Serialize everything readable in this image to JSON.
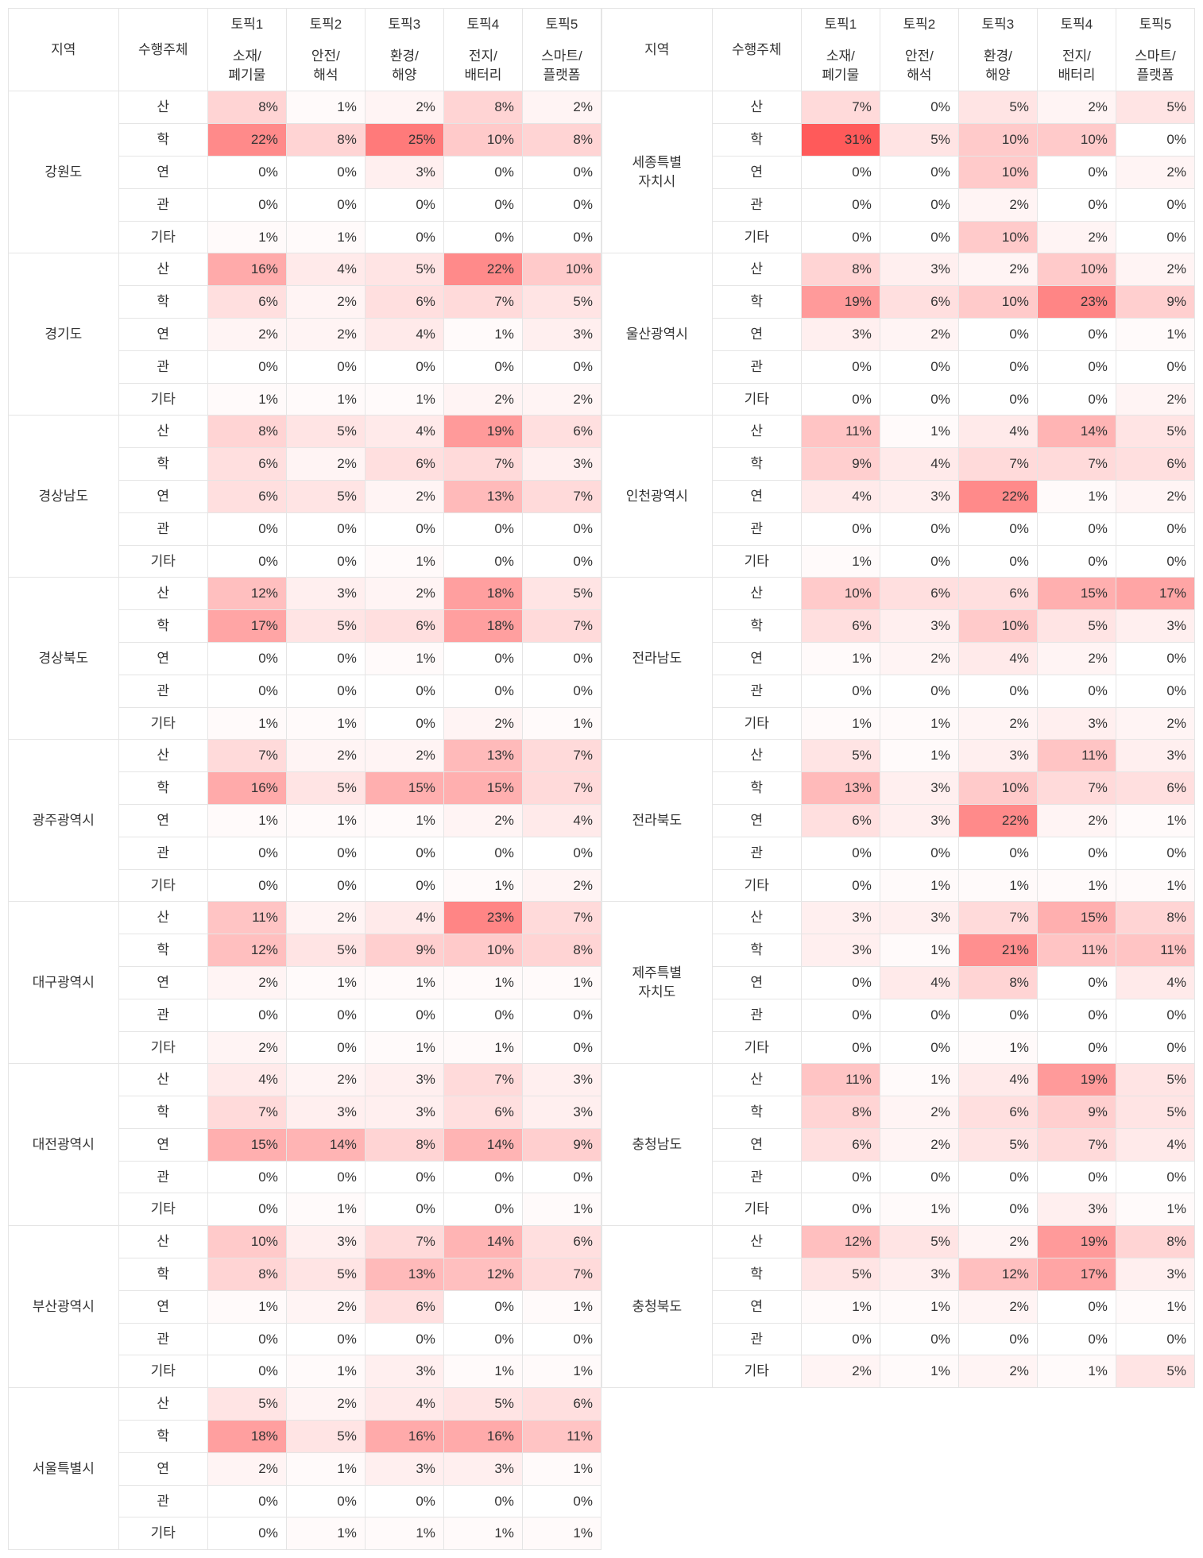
{
  "headers": {
    "region": "지역",
    "subject": "수행주체",
    "topic_labels": [
      "토픽1",
      "토픽2",
      "토픽3",
      "토픽4",
      "토픽5"
    ],
    "topic_sublabels": [
      "소재/\n폐기물",
      "안전/\n해석",
      "환경/\n해양",
      "전지/\n배터리",
      "스마트/\n플랫폼"
    ]
  },
  "heatmap": {
    "min_color": "#ffffff",
    "max_color": "#ff5a5a",
    "min_value": 0,
    "max_value": 31
  },
  "subjects": [
    "산",
    "학",
    "연",
    "관",
    "기타"
  ],
  "left_regions": [
    {
      "name": "강원도",
      "rows": [
        [
          8,
          1,
          2,
          8,
          2
        ],
        [
          22,
          8,
          25,
          10,
          8
        ],
        [
          0,
          0,
          3,
          0,
          0
        ],
        [
          0,
          0,
          0,
          0,
          0
        ],
        [
          1,
          1,
          0,
          0,
          0
        ]
      ]
    },
    {
      "name": "경기도",
      "rows": [
        [
          16,
          4,
          5,
          22,
          10
        ],
        [
          6,
          2,
          6,
          7,
          5
        ],
        [
          2,
          2,
          4,
          1,
          3
        ],
        [
          0,
          0,
          0,
          0,
          0
        ],
        [
          1,
          1,
          1,
          2,
          2
        ]
      ]
    },
    {
      "name": "경상남도",
      "rows": [
        [
          8,
          5,
          4,
          19,
          6
        ],
        [
          6,
          2,
          6,
          7,
          3
        ],
        [
          6,
          5,
          2,
          13,
          7
        ],
        [
          0,
          0,
          0,
          0,
          0
        ],
        [
          0,
          0,
          1,
          0,
          0
        ]
      ]
    },
    {
      "name": "경상북도",
      "rows": [
        [
          12,
          3,
          2,
          18,
          5
        ],
        [
          17,
          5,
          6,
          18,
          7
        ],
        [
          0,
          0,
          1,
          0,
          0
        ],
        [
          0,
          0,
          0,
          0,
          0
        ],
        [
          1,
          1,
          0,
          2,
          1
        ]
      ]
    },
    {
      "name": "광주광역시",
      "rows": [
        [
          7,
          2,
          2,
          13,
          7
        ],
        [
          16,
          5,
          15,
          15,
          7
        ],
        [
          1,
          1,
          1,
          2,
          4
        ],
        [
          0,
          0,
          0,
          0,
          0
        ],
        [
          0,
          0,
          0,
          1,
          2
        ]
      ]
    },
    {
      "name": "대구광역시",
      "rows": [
        [
          11,
          2,
          4,
          23,
          7
        ],
        [
          12,
          5,
          9,
          10,
          8
        ],
        [
          2,
          1,
          1,
          1,
          1
        ],
        [
          0,
          0,
          0,
          0,
          0
        ],
        [
          2,
          0,
          1,
          1,
          0
        ]
      ]
    },
    {
      "name": "대전광역시",
      "rows": [
        [
          4,
          2,
          3,
          7,
          3
        ],
        [
          7,
          3,
          3,
          6,
          3
        ],
        [
          15,
          14,
          8,
          14,
          9
        ],
        [
          0,
          0,
          0,
          0,
          0
        ],
        [
          0,
          1,
          0,
          0,
          1
        ]
      ]
    },
    {
      "name": "부산광역시",
      "rows": [
        [
          10,
          3,
          7,
          14,
          6
        ],
        [
          8,
          5,
          13,
          12,
          7
        ],
        [
          1,
          2,
          6,
          0,
          1
        ],
        [
          0,
          0,
          0,
          0,
          0
        ],
        [
          0,
          1,
          3,
          1,
          1
        ]
      ]
    },
    {
      "name": "서울특별시",
      "rows": [
        [
          5,
          2,
          4,
          5,
          6
        ],
        [
          18,
          5,
          16,
          16,
          11
        ],
        [
          2,
          1,
          3,
          3,
          1
        ],
        [
          0,
          0,
          0,
          0,
          0
        ],
        [
          0,
          1,
          1,
          1,
          1
        ]
      ]
    }
  ],
  "right_regions": [
    {
      "name": "세종특별\n자치시",
      "rows": [
        [
          7,
          0,
          5,
          2,
          5
        ],
        [
          31,
          5,
          10,
          10,
          0
        ],
        [
          0,
          0,
          10,
          0,
          2
        ],
        [
          0,
          0,
          2,
          0,
          0
        ],
        [
          0,
          0,
          10,
          2,
          0
        ]
      ]
    },
    {
      "name": "울산광역시",
      "rows": [
        [
          8,
          3,
          2,
          10,
          2
        ],
        [
          19,
          6,
          10,
          23,
          9
        ],
        [
          3,
          2,
          0,
          0,
          1
        ],
        [
          0,
          0,
          0,
          0,
          0
        ],
        [
          0,
          0,
          0,
          0,
          2
        ]
      ]
    },
    {
      "name": "인천광역시",
      "rows": [
        [
          11,
          1,
          4,
          14,
          5
        ],
        [
          9,
          4,
          7,
          7,
          6
        ],
        [
          4,
          3,
          22,
          1,
          2
        ],
        [
          0,
          0,
          0,
          0,
          0
        ],
        [
          1,
          0,
          0,
          0,
          0
        ]
      ]
    },
    {
      "name": "전라남도",
      "rows": [
        [
          10,
          6,
          6,
          15,
          17
        ],
        [
          6,
          3,
          10,
          5,
          3
        ],
        [
          1,
          2,
          4,
          2,
          0
        ],
        [
          0,
          0,
          0,
          0,
          0
        ],
        [
          1,
          1,
          2,
          3,
          2
        ]
      ]
    },
    {
      "name": "전라북도",
      "rows": [
        [
          5,
          1,
          3,
          11,
          3
        ],
        [
          13,
          3,
          10,
          7,
          6
        ],
        [
          6,
          3,
          22,
          2,
          1
        ],
        [
          0,
          0,
          0,
          0,
          0
        ],
        [
          0,
          1,
          1,
          1,
          1
        ]
      ]
    },
    {
      "name": "제주특별\n자치도",
      "rows": [
        [
          3,
          3,
          7,
          15,
          8
        ],
        [
          3,
          1,
          21,
          11,
          11
        ],
        [
          0,
          4,
          8,
          0,
          4
        ],
        [
          0,
          0,
          0,
          0,
          0
        ],
        [
          0,
          0,
          1,
          0,
          0
        ]
      ]
    },
    {
      "name": "충청남도",
      "rows": [
        [
          11,
          1,
          4,
          19,
          5
        ],
        [
          8,
          2,
          6,
          9,
          5
        ],
        [
          6,
          2,
          5,
          7,
          4
        ],
        [
          0,
          0,
          0,
          0,
          0
        ],
        [
          0,
          1,
          0,
          3,
          1
        ]
      ]
    },
    {
      "name": "충청북도",
      "rows": [
        [
          12,
          5,
          2,
          19,
          8
        ],
        [
          5,
          3,
          12,
          17,
          3
        ],
        [
          1,
          1,
          2,
          0,
          1
        ],
        [
          0,
          0,
          0,
          0,
          0
        ],
        [
          2,
          1,
          2,
          1,
          5
        ]
      ]
    }
  ]
}
